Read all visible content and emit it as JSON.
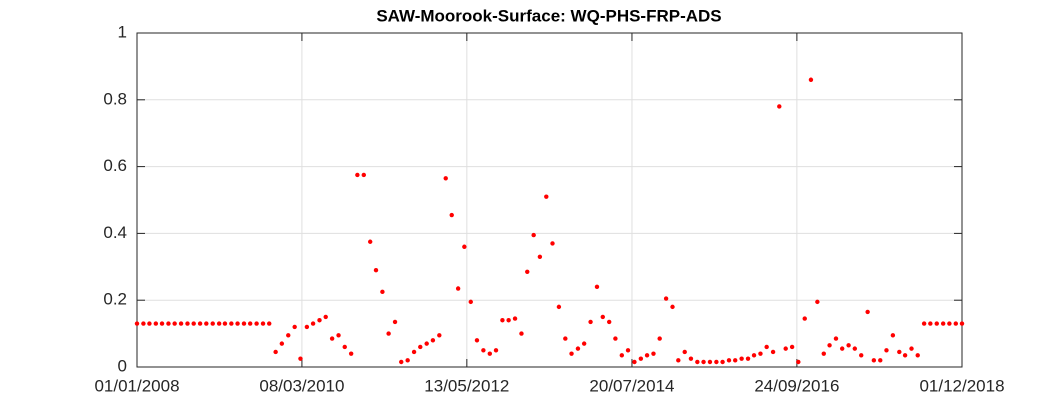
{
  "chart_data": {
    "type": "scatter",
    "title": "SAW-Moorook-Surface: WQ-PHS-FRP-ADS",
    "color": "#ff0000",
    "grid": true,
    "xlim": [
      "01/01/2008",
      "01/12/2018"
    ],
    "xticks": [
      "01/01/2008",
      "08/03/2010",
      "13/05/2012",
      "20/07/2014",
      "24/09/2016",
      "01/12/2018"
    ],
    "ylim": [
      0,
      1
    ],
    "yticks": [
      0,
      0.2,
      0.4,
      0.6,
      0.8,
      1
    ],
    "x": [
      "01/01/2008",
      "01/02/2008",
      "01/03/2008",
      "01/04/2008",
      "01/05/2008",
      "01/06/2008",
      "01/07/2008",
      "01/08/2008",
      "01/09/2008",
      "01/10/2008",
      "01/11/2008",
      "01/12/2008",
      "01/01/2009",
      "01/02/2009",
      "01/03/2009",
      "01/04/2009",
      "01/05/2009",
      "01/06/2009",
      "01/07/2009",
      "01/08/2009",
      "01/09/2009",
      "01/10/2009",
      "01/11/2009",
      "01/12/2009",
      "01/01/2010",
      "01/02/2010",
      "01/03/2010",
      "01/04/2010",
      "01/05/2010",
      "01/06/2010",
      "01/07/2010",
      "01/08/2010",
      "01/09/2010",
      "01/10/2010",
      "01/11/2010",
      "01/12/2010",
      "01/01/2011",
      "01/02/2011",
      "01/03/2011",
      "01/04/2011",
      "01/05/2011",
      "01/06/2011",
      "01/07/2011",
      "01/08/2011",
      "01/09/2011",
      "01/10/2011",
      "01/11/2011",
      "01/12/2011",
      "01/01/2012",
      "01/02/2012",
      "01/03/2012",
      "01/04/2012",
      "01/05/2012",
      "01/06/2012",
      "01/07/2012",
      "01/08/2012",
      "01/09/2012",
      "01/10/2012",
      "01/11/2012",
      "01/12/2012",
      "01/01/2013",
      "01/02/2013",
      "01/03/2013",
      "01/04/2013",
      "01/05/2013",
      "01/06/2013",
      "01/07/2013",
      "01/08/2013",
      "01/09/2013",
      "01/10/2013",
      "01/11/2013",
      "01/12/2013",
      "01/01/2014",
      "01/02/2014",
      "01/03/2014",
      "01/04/2014",
      "01/05/2014",
      "01/06/2014",
      "01/07/2014",
      "01/08/2014",
      "01/09/2014",
      "01/10/2014",
      "01/11/2014",
      "01/12/2014",
      "01/01/2015",
      "01/02/2015",
      "01/03/2015",
      "01/04/2015",
      "01/05/2015",
      "01/06/2015",
      "01/07/2015",
      "01/08/2015",
      "01/09/2015",
      "01/10/2015",
      "01/11/2015",
      "01/12/2015",
      "01/01/2016",
      "01/02/2016",
      "01/03/2016",
      "01/04/2016",
      "01/05/2016",
      "01/06/2016",
      "01/07/2016",
      "01/08/2016",
      "01/09/2016",
      "01/10/2016",
      "01/11/2016",
      "01/12/2016",
      "01/01/2017",
      "01/02/2017",
      "01/03/2017",
      "01/04/2017",
      "01/05/2017",
      "01/06/2017",
      "01/07/2017",
      "01/08/2017",
      "01/09/2017",
      "01/10/2017",
      "01/11/2017",
      "01/12/2017",
      "01/01/2018",
      "01/02/2018",
      "01/03/2018",
      "01/04/2018",
      "01/05/2018",
      "01/06/2018",
      "01/07/2018",
      "01/08/2018",
      "01/09/2018",
      "01/10/2018",
      "01/11/2018",
      "01/12/2018"
    ],
    "values": [
      0.13,
      0.13,
      0.13,
      0.13,
      0.13,
      0.13,
      0.13,
      0.13,
      0.13,
      0.13,
      0.13,
      0.13,
      0.13,
      0.13,
      0.13,
      0.13,
      0.13,
      0.13,
      0.13,
      0.13,
      0.13,
      0.13,
      0.045,
      0.07,
      0.095,
      0.12,
      0.025,
      0.12,
      0.13,
      0.14,
      0.15,
      0.085,
      0.095,
      0.06,
      0.04,
      0.575,
      0.575,
      0.375,
      0.29,
      0.225,
      0.1,
      0.135,
      0.015,
      0.02,
      0.045,
      0.06,
      0.07,
      0.08,
      0.095,
      0.565,
      0.455,
      0.235,
      0.36,
      0.195,
      0.08,
      0.05,
      0.04,
      0.05,
      0.14,
      0.14,
      0.145,
      0.1,
      0.285,
      0.395,
      0.33,
      0.51,
      0.37,
      0.18,
      0.085,
      0.04,
      0.055,
      0.07,
      0.135,
      0.24,
      0.15,
      0.135,
      0.085,
      0.035,
      0.05,
      0.015,
      0.025,
      0.035,
      0.04,
      0.085,
      0.205,
      0.18,
      0.02,
      0.045,
      0.025,
      0.015,
      0.015,
      0.015,
      0.015,
      0.015,
      0.02,
      0.02,
      0.025,
      0.025,
      0.035,
      0.04,
      0.06,
      0.045,
      0.78,
      0.055,
      0.06,
      0.015,
      0.145,
      0.86,
      0.195,
      0.04,
      0.065,
      0.085,
      0.055,
      0.065,
      0.055,
      0.035,
      0.165,
      0.02,
      0.02,
      0.05,
      0.095,
      0.045,
      0.035,
      0.055,
      0.035,
      0.13,
      0.13,
      0.13,
      0.13,
      0.13,
      0.13,
      0.13
    ]
  }
}
